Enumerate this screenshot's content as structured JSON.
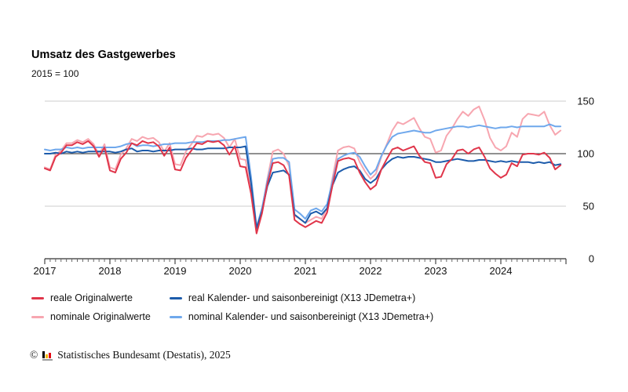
{
  "header": {
    "title": "Umsatz des Gastgewerbes",
    "subtitle": "2015 = 100"
  },
  "chart_data": {
    "type": "line",
    "title": "Umsatz des Gastgewerbes",
    "subtitle": "2015 = 100",
    "x_unit": "month",
    "x_range": "2017-01 to 2024-12",
    "year_labels": [
      "2017",
      "2018",
      "2019",
      "2020",
      "2021",
      "2022",
      "2023",
      "2024"
    ],
    "y_ticks": [
      0,
      50,
      100,
      150
    ],
    "ylim": [
      0,
      150
    ],
    "y_axis_side": "right",
    "reference_line": 100,
    "grid": "horizontal",
    "colors": {
      "grid": "#cccccc",
      "reference": "#4d4d4d",
      "axis": "#333333",
      "tick_minor": "#666666",
      "tick_major": "#222222",
      "label": "#111111"
    },
    "draw_order": [
      2,
      3,
      1,
      0
    ],
    "series": [
      {
        "name": "reale Originalwerte",
        "color": "#e0354a",
        "values": [
          86,
          84,
          97,
          101,
          108,
          108,
          111,
          109,
          112,
          107,
          97,
          106,
          84,
          82,
          95,
          101,
          110,
          108,
          112,
          110,
          111,
          107,
          98,
          106,
          85,
          84,
          96,
          103,
          110,
          109,
          112,
          111,
          112,
          108,
          99,
          107,
          88,
          87,
          62,
          24,
          43,
          71,
          91,
          92,
          89,
          79,
          37,
          33,
          30,
          33,
          36,
          34,
          44,
          70,
          93,
          95,
          96,
          94,
          82,
          73,
          66,
          70,
          85,
          95,
          104,
          106,
          103,
          105,
          107,
          98,
          92,
          91,
          77,
          78,
          90,
          95,
          103,
          104,
          100,
          104,
          106,
          97,
          86,
          81,
          77,
          80,
          91,
          88,
          99,
          100,
          100,
          99,
          101,
          96,
          85,
          89
        ]
      },
      {
        "name": "real Kalender- und saisonbereinigt (X13 JDemetra+)",
        "color": "#1d5cab",
        "values": [
          100,
          100,
          101,
          100,
          102,
          101,
          102,
          101,
          102,
          102,
          102,
          102,
          102,
          101,
          102,
          104,
          105,
          102,
          103,
          103,
          102,
          103,
          103,
          103,
          104,
          104,
          104,
          105,
          104,
          104,
          105,
          105,
          105,
          105,
          106,
          106,
          106,
          107,
          72,
          29,
          45,
          69,
          82,
          83,
          84,
          80,
          42,
          38,
          34,
          43,
          45,
          42,
          48,
          70,
          82,
          85,
          87,
          88,
          84,
          76,
          72,
          76,
          85,
          91,
          95,
          97,
          96,
          97,
          97,
          96,
          95,
          94,
          92,
          92,
          93,
          94,
          95,
          94,
          93,
          93,
          94,
          94,
          93,
          92,
          93,
          92,
          93,
          92,
          92,
          92,
          91,
          92,
          91,
          92,
          89,
          90
        ]
      },
      {
        "name": "nominale Originalwerte",
        "color": "#f7a6b0",
        "values": [
          87,
          85,
          99,
          103,
          110,
          110,
          113,
          111,
          114,
          109,
          99,
          109,
          87,
          85,
          99,
          105,
          114,
          112,
          116,
          114,
          115,
          111,
          102,
          110,
          90,
          89,
          102,
          109,
          117,
          116,
          119,
          118,
          119,
          115,
          106,
          114,
          95,
          94,
          66,
          26,
          46,
          76,
          102,
          104,
          100,
          88,
          41,
          38,
          34,
          37,
          40,
          38,
          48,
          77,
          103,
          106,
          107,
          105,
          92,
          83,
          76,
          81,
          97,
          109,
          122,
          130,
          128,
          131,
          134,
          124,
          116,
          114,
          101,
          103,
          117,
          124,
          133,
          140,
          136,
          142,
          145,
          132,
          115,
          106,
          103,
          107,
          120,
          116,
          133,
          138,
          137,
          136,
          140,
          127,
          118,
          122
        ]
      },
      {
        "name": "nominal Kalender- und saisonbereinigt (X13 JDemetra+)",
        "color": "#6fa8ec",
        "values": [
          104,
          103,
          104,
          104,
          106,
          105,
          106,
          105,
          106,
          106,
          106,
          106,
          106,
          106,
          107,
          109,
          110,
          107,
          108,
          108,
          107,
          108,
          109,
          109,
          110,
          110,
          110,
          111,
          111,
          111,
          112,
          112,
          112,
          113,
          113,
          114,
          115,
          116,
          78,
          30,
          48,
          74,
          95,
          96,
          96,
          92,
          47,
          43,
          38,
          46,
          48,
          45,
          52,
          74,
          95,
          98,
          100,
          101,
          97,
          88,
          80,
          85,
          98,
          108,
          116,
          119,
          120,
          121,
          122,
          121,
          120,
          120,
          122,
          123,
          124,
          125,
          126,
          126,
          125,
          126,
          127,
          126,
          125,
          124,
          125,
          125,
          126,
          125,
          126,
          126,
          126,
          126,
          126,
          128,
          126,
          126
        ]
      }
    ]
  },
  "legend": {
    "items": [
      {
        "label": "reale Originalwerte",
        "color": "#e0354a"
      },
      {
        "label": "real Kalender- und saisonbereinigt (X13 JDemetra+)",
        "color": "#1d5cab"
      },
      {
        "label": "nominale Originalwerte",
        "color": "#f7a6b0"
      },
      {
        "label": "nominal Kalender- und saisonbereinigt (X13 JDemetra+)",
        "color": "#6fa8ec"
      }
    ]
  },
  "footer": {
    "copyright_symbol": "©",
    "text": "Statistisches Bundesamt (Destatis), 2025",
    "logo_bar_colors": [
      "#000000",
      "#f5b800",
      "#e30613"
    ],
    "logo_base_color": "#9a9a9a"
  }
}
